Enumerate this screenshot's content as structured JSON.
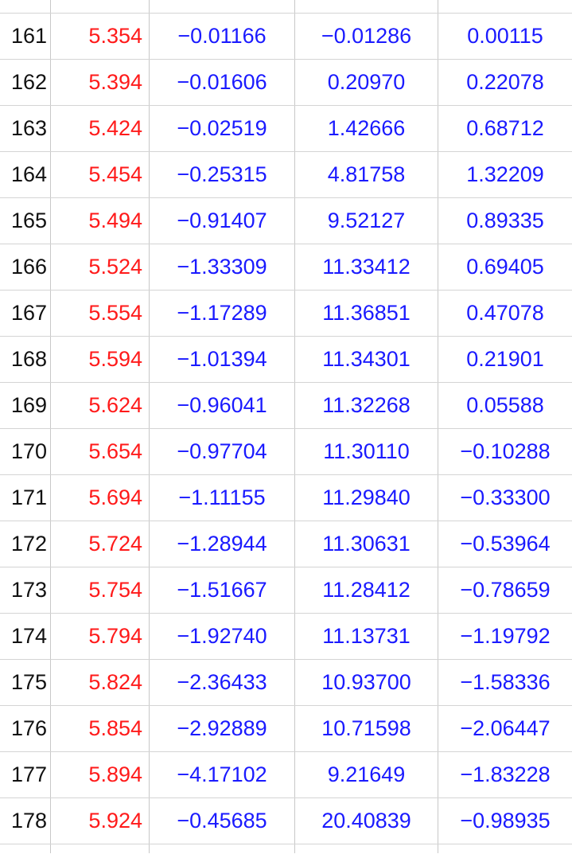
{
  "sheet": {
    "rows": [
      {
        "index": "161",
        "x": "5.354",
        "a": "−0.01166",
        "b": "−0.01286",
        "c": "0.00115"
      },
      {
        "index": "162",
        "x": "5.394",
        "a": "−0.01606",
        "b": "0.20970",
        "c": "0.22078"
      },
      {
        "index": "163",
        "x": "5.424",
        "a": "−0.02519",
        "b": "1.42666",
        "c": "0.68712"
      },
      {
        "index": "164",
        "x": "5.454",
        "a": "−0.25315",
        "b": "4.81758",
        "c": "1.32209"
      },
      {
        "index": "165",
        "x": "5.494",
        "a": "−0.91407",
        "b": "9.52127",
        "c": "0.89335"
      },
      {
        "index": "166",
        "x": "5.524",
        "a": "−1.33309",
        "b": "11.33412",
        "c": "0.69405"
      },
      {
        "index": "167",
        "x": "5.554",
        "a": "−1.17289",
        "b": "11.36851",
        "c": "0.47078"
      },
      {
        "index": "168",
        "x": "5.594",
        "a": "−1.01394",
        "b": "11.34301",
        "c": "0.21901"
      },
      {
        "index": "169",
        "x": "5.624",
        "a": "−0.96041",
        "b": "11.32268",
        "c": "0.05588"
      },
      {
        "index": "170",
        "x": "5.654",
        "a": "−0.97704",
        "b": "11.30110",
        "c": "−0.10288"
      },
      {
        "index": "171",
        "x": "5.694",
        "a": "−1.11155",
        "b": "11.29840",
        "c": "−0.33300"
      },
      {
        "index": "172",
        "x": "5.724",
        "a": "−1.28944",
        "b": "11.30631",
        "c": "−0.53964"
      },
      {
        "index": "173",
        "x": "5.754",
        "a": "−1.51667",
        "b": "11.28412",
        "c": "−0.78659"
      },
      {
        "index": "174",
        "x": "5.794",
        "a": "−1.92740",
        "b": "11.13731",
        "c": "−1.19792"
      },
      {
        "index": "175",
        "x": "5.824",
        "a": "−2.36433",
        "b": "10.93700",
        "c": "−1.58336"
      },
      {
        "index": "176",
        "x": "5.854",
        "a": "−2.92889",
        "b": "10.71598",
        "c": "−2.06447"
      },
      {
        "index": "177",
        "x": "5.894",
        "a": "−4.17102",
        "b": "9.21649",
        "c": "−1.83228"
      },
      {
        "index": "178",
        "x": "5.924",
        "a": "−0.45685",
        "b": "20.40839",
        "c": "−0.98935"
      }
    ]
  },
  "colors": {
    "index_text": "#111111",
    "x_text": "#ff1a1a",
    "value_text": "#1a1aff",
    "grid": "#c8c8c8"
  }
}
